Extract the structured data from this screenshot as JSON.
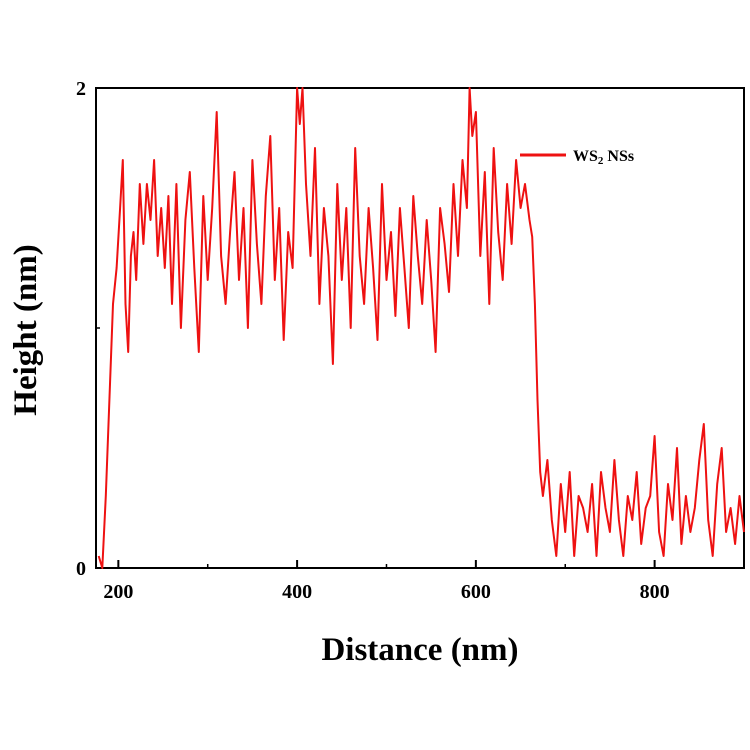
{
  "chart_data": {
    "type": "line",
    "xlabel": "Distance (nm)",
    "ylabel": "Height (nm)",
    "xlim": [
      175,
      900
    ],
    "ylim": [
      0,
      2.0
    ],
    "x_ticks": [
      200,
      400,
      600,
      800
    ],
    "y_ticks": [
      0,
      2
    ],
    "x_tick_labels": [
      "200",
      "400",
      "600",
      "800"
    ],
    "y_tick_labels": [
      "0",
      "2"
    ],
    "grid": false,
    "legend_position": "top-right",
    "series": [
      {
        "name": "WS2 NSs",
        "legend_main": "WS",
        "legend_sub": "2",
        "legend_rest": " NSs",
        "color": "#ee1111",
        "x": [
          178,
          182,
          186,
          190,
          194,
          198,
          202,
          205,
          208,
          211,
          214,
          217,
          220,
          224,
          228,
          232,
          236,
          240,
          244,
          248,
          252,
          256,
          260,
          265,
          270,
          275,
          280,
          285,
          290,
          295,
          300,
          305,
          310,
          315,
          320,
          325,
          330,
          335,
          340,
          345,
          350,
          355,
          360,
          365,
          370,
          375,
          380,
          385,
          390,
          395,
          400,
          403,
          406,
          410,
          415,
          420,
          425,
          430,
          435,
          440,
          445,
          450,
          455,
          460,
          465,
          470,
          475,
          480,
          485,
          490,
          495,
          500,
          505,
          510,
          515,
          520,
          525,
          530,
          535,
          540,
          545,
          550,
          555,
          560,
          565,
          570,
          575,
          580,
          585,
          590,
          593,
          596,
          600,
          605,
          610,
          615,
          620,
          625,
          630,
          635,
          640,
          645,
          650,
          655,
          660,
          663,
          666,
          669,
          672,
          675,
          680,
          685,
          690,
          695,
          700,
          705,
          710,
          715,
          720,
          725,
          730,
          735,
          740,
          745,
          750,
          755,
          760,
          765,
          770,
          775,
          780,
          785,
          790,
          795,
          800,
          805,
          810,
          815,
          820,
          825,
          830,
          835,
          840,
          845,
          850,
          855,
          860,
          865,
          870,
          875,
          880,
          885,
          890,
          895,
          900
        ],
        "values": [
          0.05,
          0.0,
          0.3,
          0.7,
          1.1,
          1.25,
          1.5,
          1.7,
          1.1,
          0.9,
          1.3,
          1.4,
          1.2,
          1.6,
          1.35,
          1.6,
          1.45,
          1.7,
          1.3,
          1.5,
          1.25,
          1.55,
          1.1,
          1.6,
          1.0,
          1.45,
          1.65,
          1.25,
          0.9,
          1.55,
          1.2,
          1.5,
          1.9,
          1.3,
          1.1,
          1.4,
          1.65,
          1.2,
          1.5,
          1.0,
          1.7,
          1.35,
          1.1,
          1.55,
          1.8,
          1.2,
          1.5,
          0.95,
          1.4,
          1.25,
          2.2,
          1.85,
          2.25,
          1.6,
          1.3,
          1.75,
          1.1,
          1.5,
          1.3,
          0.85,
          1.6,
          1.2,
          1.5,
          1.0,
          1.75,
          1.3,
          1.1,
          1.5,
          1.25,
          0.95,
          1.6,
          1.2,
          1.4,
          1.05,
          1.5,
          1.25,
          1.0,
          1.55,
          1.3,
          1.1,
          1.45,
          1.2,
          0.9,
          1.5,
          1.35,
          1.15,
          1.6,
          1.3,
          1.7,
          1.5,
          2.1,
          1.8,
          1.9,
          1.3,
          1.65,
          1.1,
          1.75,
          1.4,
          1.2,
          1.6,
          1.35,
          1.7,
          1.5,
          1.6,
          1.45,
          1.38,
          1.1,
          0.7,
          0.4,
          0.3,
          0.45,
          0.2,
          0.05,
          0.35,
          0.15,
          0.4,
          0.05,
          0.3,
          0.25,
          0.15,
          0.35,
          0.05,
          0.4,
          0.25,
          0.15,
          0.45,
          0.2,
          0.05,
          0.3,
          0.2,
          0.4,
          0.1,
          0.25,
          0.3,
          0.55,
          0.15,
          0.05,
          0.35,
          0.2,
          0.5,
          0.1,
          0.3,
          0.15,
          0.25,
          0.45,
          0.6,
          0.2,
          0.05,
          0.35,
          0.5,
          0.15,
          0.25,
          0.1,
          0.3,
          0.15
        ]
      }
    ]
  }
}
